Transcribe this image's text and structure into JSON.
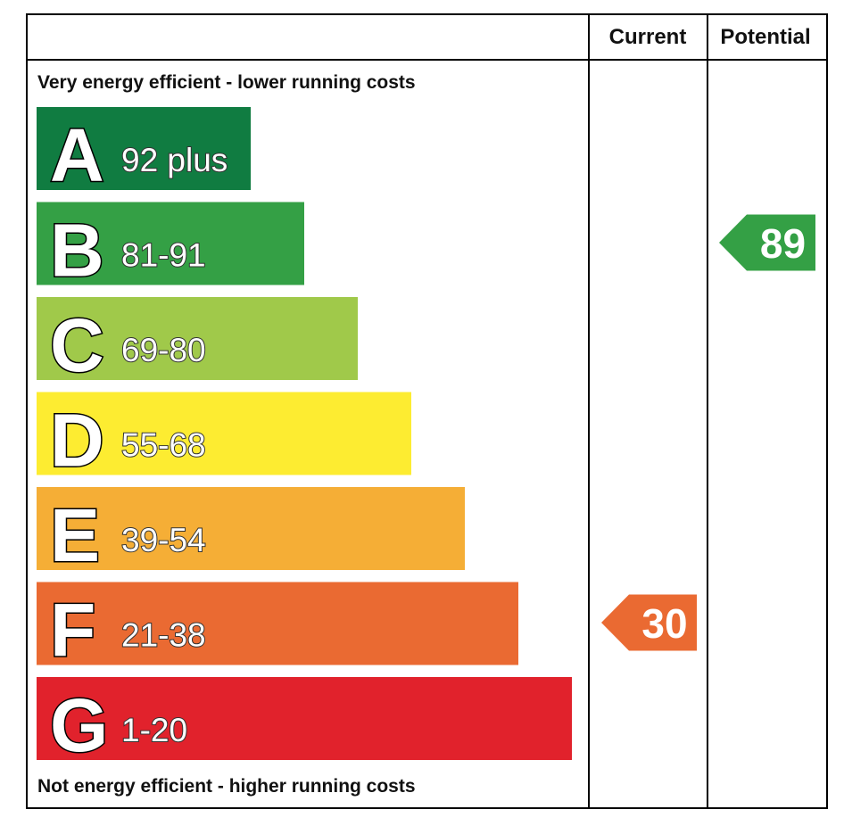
{
  "header": {
    "current_label": "Current",
    "potential_label": "Potential"
  },
  "top_caption": "Very energy efficient - lower running costs",
  "bottom_caption": "Not energy efficient - higher running costs",
  "chart_data": {
    "type": "bar",
    "categories": [
      "A",
      "B",
      "C",
      "D",
      "E",
      "F",
      "G"
    ],
    "ranges": [
      "92 plus",
      "81-91",
      "69-80",
      "55-68",
      "39-54",
      "21-38",
      "1-20"
    ],
    "colors": [
      "#107c41",
      "#34a045",
      "#a0c94a",
      "#fdec31",
      "#f5ae36",
      "#ea6a32",
      "#e1222c"
    ],
    "current": {
      "value": 30,
      "band": "F",
      "color": "#ea6a32"
    },
    "potential": {
      "value": 89,
      "band": "B",
      "color": "#34a045"
    }
  }
}
